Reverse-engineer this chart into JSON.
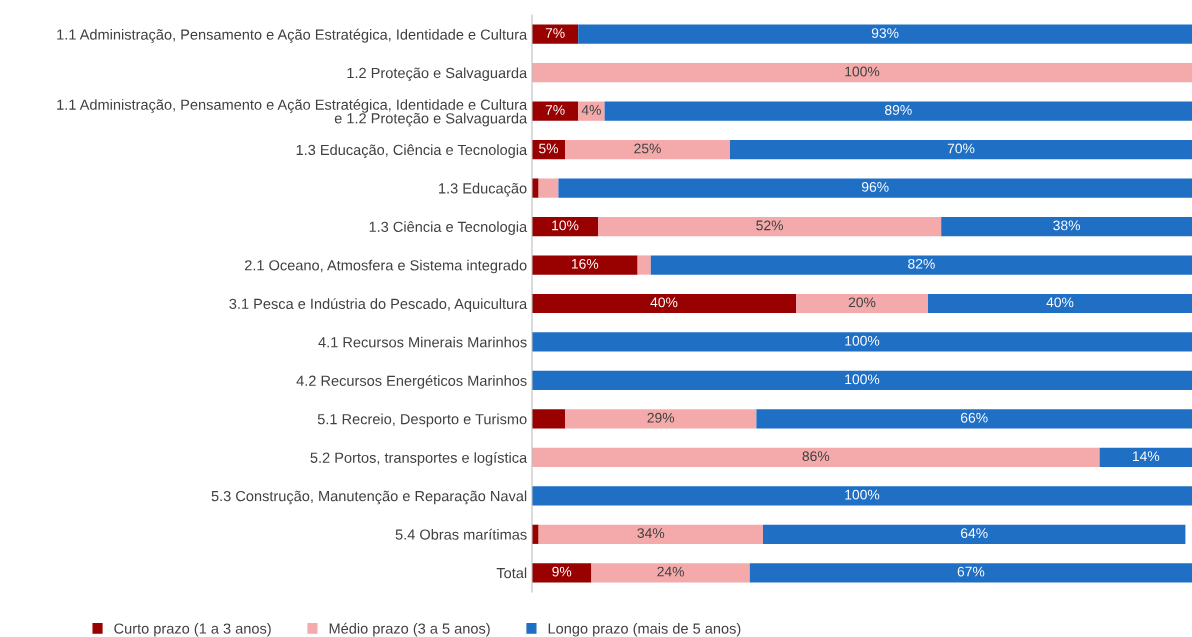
{
  "chart_data": {
    "type": "bar",
    "orientation": "horizontal",
    "stacked": true,
    "xlim": [
      0,
      100
    ],
    "tick_labels": "y",
    "legend": "bottom",
    "grid": false,
    "categories": [
      "1.1 Administração, Pensamento e Ação Estratégica, Identidade e Cultura",
      "1.2 Proteção e Salvaguarda",
      "1.1 Administração, Pensamento e Ação Estratégica, Identidade e Cultura\ne 1.2 Proteção e Salvaguarda",
      "1.3 Educação, Ciência e Tecnologia",
      "1.3 Educação",
      "1.3 Ciência e Tecnologia",
      "2.1 Oceano, Atmosfera e Sistema integrado",
      "3.1 Pesca e Indústria do Pescado, Aquicultura",
      "4.1 Recursos Minerais Marinhos",
      "4.2 Recursos Energéticos Marinhos",
      "5.1 Recreio, Desporto e Turismo",
      "5.2 Portos, transportes e logística",
      "5.3 Construção, Manutenção e Reparação Naval",
      "5.4 Obras marítimas",
      "Total"
    ],
    "series": [
      {
        "name": "Curto prazo (1 a 3 anos)",
        "color": "#990000",
        "values": [
          7,
          0,
          7,
          5,
          1,
          10,
          16,
          40,
          0,
          0,
          5,
          0,
          0,
          1,
          9
        ],
        "value_labels": [
          "7%",
          null,
          "7%",
          "5%",
          null,
          "10%",
          "16%",
          "40%",
          null,
          null,
          null,
          null,
          null,
          null,
          "9%"
        ]
      },
      {
        "name": "Médio prazo (3 a 5 anos)",
        "color": "#f4aaaa",
        "values": [
          0,
          100,
          4,
          25,
          3,
          52,
          2,
          20,
          0,
          0,
          29,
          86,
          0,
          34,
          24
        ],
        "value_labels": [
          null,
          "100%",
          "4%",
          "25%",
          null,
          "52%",
          null,
          "20%",
          null,
          null,
          "29%",
          "86%",
          null,
          "34%",
          "24%"
        ]
      },
      {
        "name": "Longo prazo (mais de 5 anos)",
        "color": "#1f6fc5",
        "values": [
          93,
          0,
          89,
          70,
          96,
          38,
          82,
          40,
          100,
          100,
          66,
          14,
          100,
          64,
          67
        ],
        "value_labels": [
          "93%",
          null,
          "89%",
          "70%",
          "96%",
          "38%",
          "82%",
          "40%",
          "100%",
          "100%",
          "66%",
          "14%",
          "100%",
          "64%",
          "67%"
        ]
      }
    ]
  }
}
